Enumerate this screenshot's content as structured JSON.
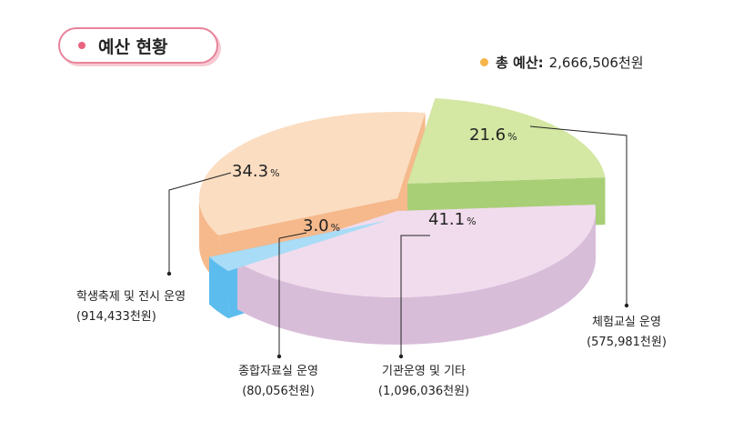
{
  "header": {
    "title": "예산 현황"
  },
  "total": {
    "label": "총 예산:",
    "value": "2,666,506천원"
  },
  "chart_data": {
    "type": "pie",
    "slices": [
      {
        "name": "체험교실 운영",
        "amount": "(575,981천원)",
        "value": 575981,
        "percent": "21.6",
        "color_top": "#d4e7a3",
        "color_side": "#a9cf76"
      },
      {
        "name": "기관운영 및 기타",
        "amount": "(1,096,036천원)",
        "value": 1096036,
        "percent": "41.1",
        "color_top": "#f1dced",
        "color_side": "#d8bdd9"
      },
      {
        "name": "종합자료실 운영",
        "amount": "(80,056천원)",
        "value": 80056,
        "percent": "3.0",
        "color_top": "#a9dcf6",
        "color_side": "#5cbcee"
      },
      {
        "name": "학생축제 및 전시 운영",
        "amount": "(914,433천원)",
        "value": 914433,
        "percent": "34.3",
        "color_top": "#fbddc1",
        "color_side": "#f5b98c"
      }
    ],
    "percent_symbol": "%"
  }
}
